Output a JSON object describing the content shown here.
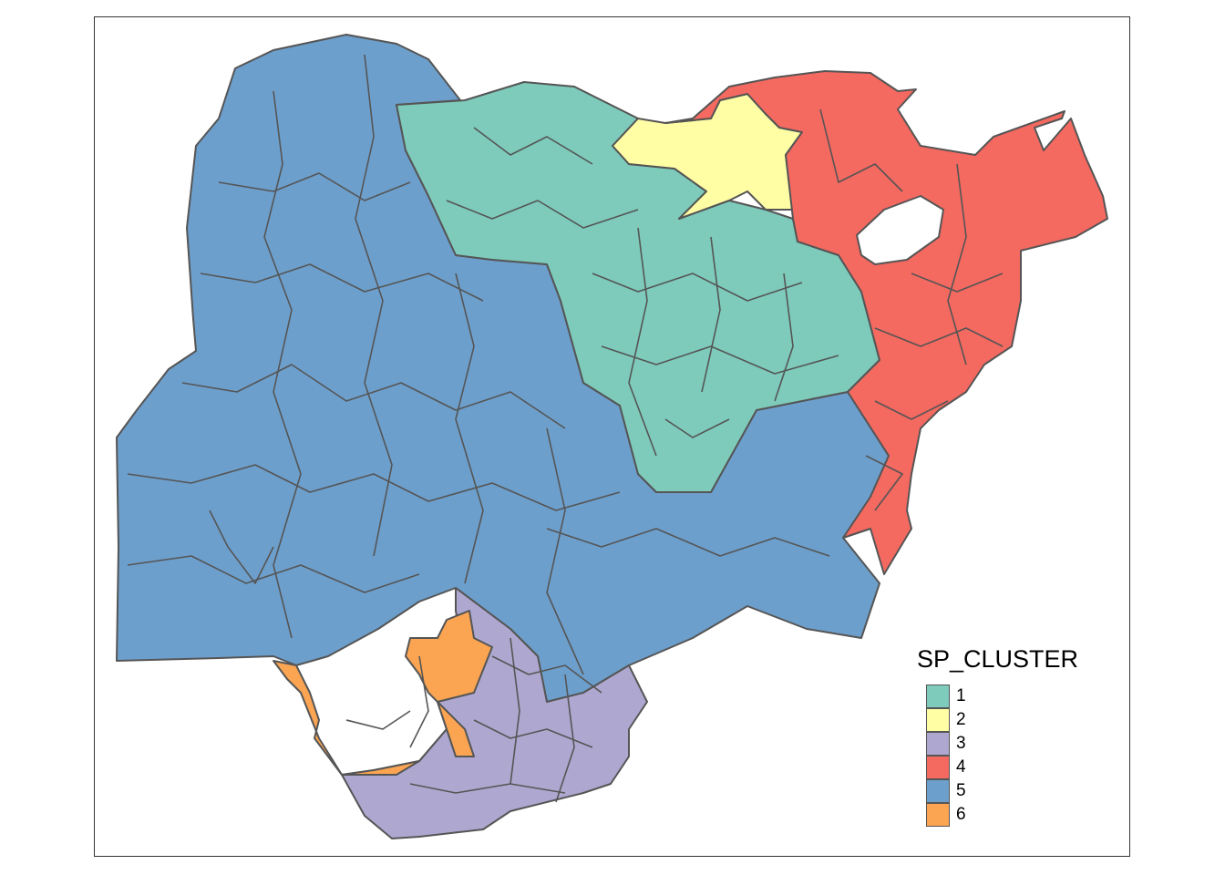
{
  "legend": {
    "title": "SP_CLUSTER",
    "items": [
      {
        "label": "1",
        "color": "#7ecbbb"
      },
      {
        "label": "2",
        "color": "#fffea4"
      },
      {
        "label": "3",
        "color": "#aea8d0"
      },
      {
        "label": "4",
        "color": "#f46960"
      },
      {
        "label": "5",
        "color": "#6d9fcc"
      },
      {
        "label": "6",
        "color": "#fba552"
      }
    ]
  },
  "border_color": "#555555"
}
